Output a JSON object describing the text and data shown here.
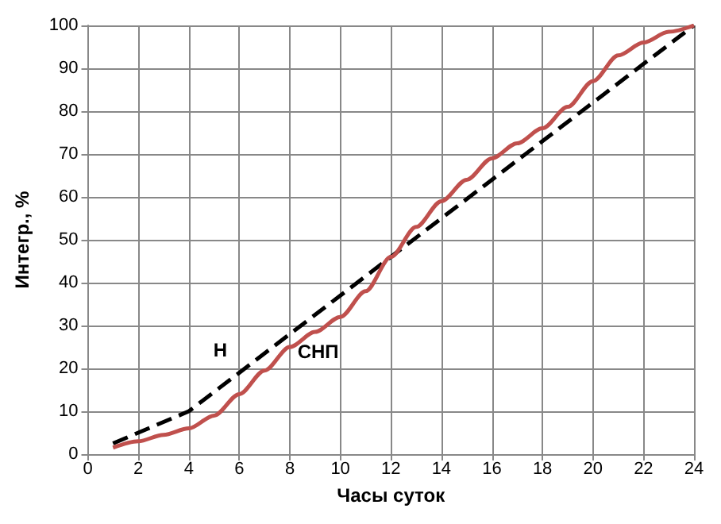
{
  "chart_data": {
    "type": "line",
    "xlabel": "Часы суток",
    "ylabel": "Интегр., %",
    "xlim": [
      0,
      24
    ],
    "xticks": [
      0,
      2,
      4,
      6,
      8,
      10,
      12,
      14,
      16,
      18,
      20,
      22,
      24
    ],
    "ylim": [
      0,
      100
    ],
    "yticks": [
      0,
      10,
      20,
      30,
      40,
      50,
      60,
      70,
      80,
      90,
      100
    ],
    "grid": true,
    "marker": "none",
    "series": [
      {
        "name": "Н",
        "color": "#000000",
        "line_style": "dashed",
        "x": [
          1,
          2,
          3,
          4,
          6,
          8,
          10,
          12,
          14,
          16,
          18,
          20,
          22,
          24
        ],
        "values": [
          2.5,
          5,
          7.5,
          10,
          19,
          28,
          37,
          46,
          55,
          64,
          73,
          82,
          91,
          100
        ]
      },
      {
        "name": "СНП",
        "color": "#c0504d",
        "line_style": "solid",
        "x": [
          1,
          2,
          3,
          4,
          5,
          6,
          7,
          8,
          9,
          10,
          11,
          12,
          13,
          14,
          15,
          16,
          17,
          18,
          19,
          20,
          21,
          22,
          23,
          24
        ],
        "values": [
          1.5,
          3,
          4.5,
          6,
          9,
          14,
          19.5,
          25,
          28.5,
          32,
          38,
          46,
          53,
          59,
          64,
          69,
          72.5,
          76,
          81,
          87,
          93,
          96,
          98.5,
          100
        ]
      }
    ]
  }
}
